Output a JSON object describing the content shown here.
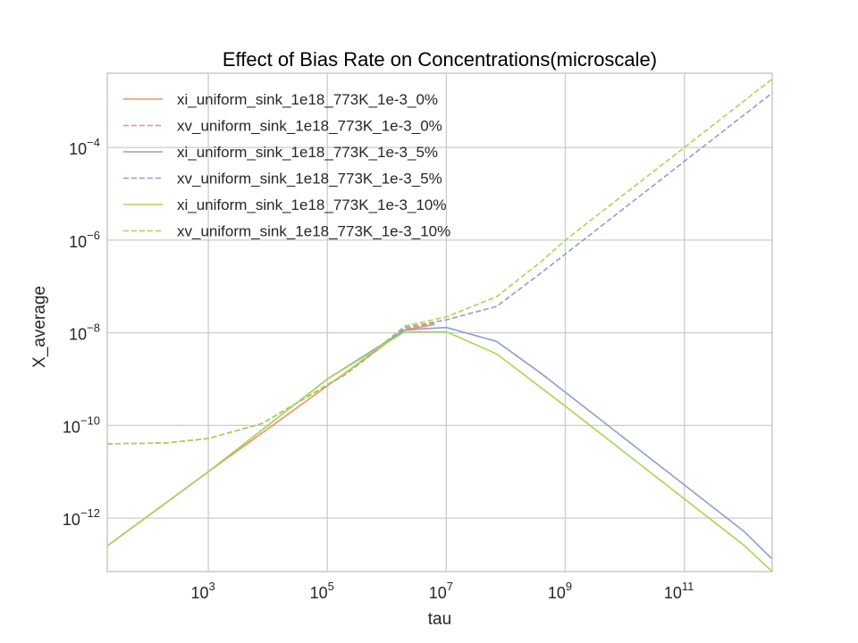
{
  "chart_data": {
    "type": "line",
    "title": "Effect of Bias Rate on Concentrations(microscale)",
    "xlabel": "tau",
    "ylabel": "X_average",
    "xscale": "log",
    "yscale": "log",
    "xlim": [
      20,
      3000000000000.0
    ],
    "ylim": [
      7e-14,
      0.004
    ],
    "xticks": [
      {
        "value": 1000.0,
        "base": "10",
        "exp": "3"
      },
      {
        "value": 100000.0,
        "base": "10",
        "exp": "5"
      },
      {
        "value": 10000000.0,
        "base": "10",
        "exp": "7"
      },
      {
        "value": 1000000000.0,
        "base": "10",
        "exp": "9"
      },
      {
        "value": 100000000000.0,
        "base": "10",
        "exp": "11"
      }
    ],
    "yticks": [
      {
        "value": 1e-12,
        "base": "10",
        "exp": "−12"
      },
      {
        "value": 1e-10,
        "base": "10",
        "exp": "−10"
      },
      {
        "value": 1e-08,
        "base": "10",
        "exp": "−8"
      },
      {
        "value": 1e-06,
        "base": "10",
        "exp": "−6"
      },
      {
        "value": 0.0001,
        "base": "10",
        "exp": "−4"
      }
    ],
    "grid": true,
    "legend_position": "upper-left",
    "series": [
      {
        "name": "xi_uniform_sink_1e18_773K_1e-3_0%",
        "color": "#fc8d62",
        "dash": "solid",
        "x": [
          20,
          1000.0,
          2000000.0,
          6300000.0
        ],
        "y": [
          2.5e-13,
          1e-11,
          1.15e-08,
          1.5e-08
        ]
      },
      {
        "name": "xv_uniform_sink_1e18_773K_1e-3_0%",
        "color": "#fc8d62",
        "dash": "dashed",
        "x": [
          20,
          200,
          1000.0,
          8000.0,
          200000.0,
          2000000.0,
          6300000.0
        ],
        "y": [
          4e-11,
          4.2e-11,
          5.2e-11,
          1.1e-10,
          1.25e-09,
          1.2e-08,
          1.6e-08
        ]
      },
      {
        "name": "xi_uniform_sink_1e18_773K_1e-3_5%",
        "color": "#8da0cb",
        "dash": "solid",
        "x": [
          20,
          1000.0,
          100000.0,
          2000000.0,
          10000000.0,
          70000000.0,
          400000000.0,
          1000000000.0,
          10000000000.0,
          100000000000.0,
          1000000000000.0,
          3000000000000.0
        ],
        "y": [
          2.5e-13,
          1e-11,
          1e-09,
          1.15e-08,
          1.3e-08,
          6.5e-09,
          1.3e-09,
          5.2e-10,
          5.2e-11,
          5.2e-12,
          5.2e-13,
          1.3e-13
        ]
      },
      {
        "name": "xv_uniform_sink_1e18_773K_1e-3_5%",
        "color": "#8da0cb",
        "dash": "dashed",
        "x": [
          20,
          200,
          1000.0,
          8000.0,
          200000.0,
          2000000.0,
          10000000.0,
          70000000.0,
          400000000.0,
          1000000000.0,
          10000000000.0,
          100000000000.0,
          1000000000000.0,
          3000000000000.0
        ],
        "y": [
          4e-11,
          4.2e-11,
          5.2e-11,
          1.1e-10,
          1.25e-09,
          1.3e-08,
          1.9e-08,
          3.7e-08,
          2e-07,
          5e-07,
          5e-06,
          5e-05,
          0.0005,
          0.0015
        ]
      },
      {
        "name": "xi_uniform_sink_1e18_773K_1e-3_10%",
        "color": "#a6d854",
        "dash": "solid",
        "x": [
          20,
          1000.0,
          100000.0,
          2000000.0,
          10000000.0,
          70000000.0,
          1000000000.0,
          10000000000.0,
          100000000000.0,
          1000000000000.0,
          3000000000000.0
        ],
        "y": [
          2.5e-13,
          1e-11,
          1e-09,
          1.05e-08,
          1.05e-08,
          3.5e-09,
          2.6e-10,
          2.6e-11,
          2.6e-12,
          2.6e-13,
          7e-14
        ]
      },
      {
        "name": "xv_uniform_sink_1e18_773K_1e-3_10%",
        "color": "#a6d854",
        "dash": "dashed",
        "x": [
          20,
          200,
          1000.0,
          8000.0,
          200000.0,
          2000000.0,
          10000000.0,
          70000000.0,
          400000000.0,
          1000000000.0,
          10000000000.0,
          100000000000.0,
          1000000000000.0,
          3000000000000.0
        ],
        "y": [
          4e-11,
          4.2e-11,
          5.2e-11,
          1.1e-10,
          1.3e-09,
          1.4e-08,
          2.2e-08,
          6e-08,
          3.5e-07,
          1e-06,
          1e-05,
          0.0001,
          0.001,
          0.003
        ]
      }
    ]
  }
}
